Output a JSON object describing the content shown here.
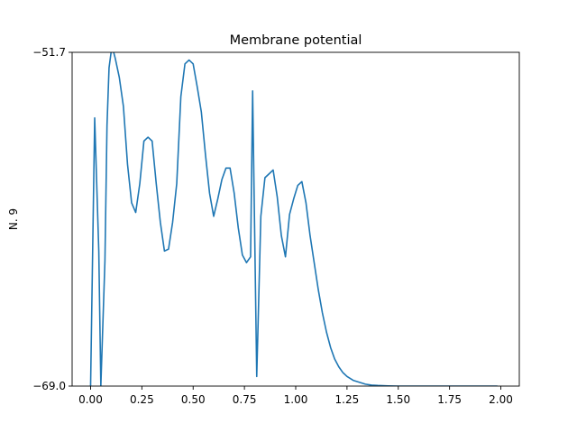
{
  "chart_data": {
    "type": "line",
    "title": "Membrane potential",
    "xlabel": "",
    "ylabel": "N. 9",
    "xlim": [
      -0.09,
      2.09
    ],
    "ylim": [
      -69.0,
      -51.7
    ],
    "xticks": [
      0.0,
      0.25,
      0.5,
      0.75,
      1.0,
      1.25,
      1.5,
      1.75,
      2.0
    ],
    "xtick_labels": [
      "0.00",
      "0.25",
      "0.50",
      "0.75",
      "1.00",
      "1.25",
      "1.50",
      "1.75",
      "2.00"
    ],
    "yticks": [
      -69.0,
      -51.7
    ],
    "ytick_labels": [
      "−69.0",
      "−51.7"
    ],
    "grid": false,
    "line_color": "#1f77b4",
    "series": [
      {
        "x": [
          0.0,
          0.02,
          0.04,
          0.05,
          0.07,
          0.08,
          0.09,
          0.1,
          0.11,
          0.12,
          0.14,
          0.16,
          0.18,
          0.2,
          0.22,
          0.24,
          0.26,
          0.28,
          0.3,
          0.32,
          0.34,
          0.36,
          0.38,
          0.4,
          0.42,
          0.44,
          0.46,
          0.48,
          0.5,
          0.52,
          0.54,
          0.56,
          0.58,
          0.6,
          0.62,
          0.64,
          0.66,
          0.68,
          0.7,
          0.72,
          0.74,
          0.76,
          0.78,
          0.79,
          0.81,
          0.83,
          0.85,
          0.87,
          0.89,
          0.91,
          0.93,
          0.95,
          0.97,
          0.99,
          1.01,
          1.03,
          1.05,
          1.07,
          1.09,
          1.11,
          1.13,
          1.15,
          1.17,
          1.19,
          1.21,
          1.23,
          1.25,
          1.28,
          1.31,
          1.34,
          1.37,
          1.4,
          1.45,
          1.5,
          1.6,
          1.7,
          1.8,
          1.9,
          1.98
        ],
        "y": [
          -69.0,
          -55.1,
          -62.0,
          -69.0,
          -62.5,
          -55.5,
          -52.5,
          -51.7,
          -51.6,
          -52.0,
          -53.0,
          -54.5,
          -57.5,
          -59.5,
          -60.0,
          -58.5,
          -56.3,
          -56.1,
          -56.3,
          -58.5,
          -60.5,
          -62.0,
          -61.9,
          -60.5,
          -58.5,
          -54.0,
          -52.3,
          -52.1,
          -52.3,
          -53.5,
          -54.8,
          -57.0,
          -59.0,
          -60.2,
          -59.3,
          -58.3,
          -57.7,
          -57.7,
          -59.0,
          -60.8,
          -62.2,
          -62.6,
          -62.3,
          -53.7,
          -68.5,
          -60.2,
          -58.2,
          -58.0,
          -57.8,
          -59.2,
          -61.2,
          -62.3,
          -60.1,
          -59.3,
          -58.6,
          -58.4,
          -59.5,
          -61.2,
          -62.6,
          -64.0,
          -65.2,
          -66.2,
          -67.0,
          -67.6,
          -68.0,
          -68.3,
          -68.5,
          -68.7,
          -68.8,
          -68.9,
          -68.95,
          -68.97,
          -68.99,
          -69.0,
          -69.0,
          -69.0,
          -69.0,
          -69.0,
          -69.0
        ]
      }
    ]
  }
}
